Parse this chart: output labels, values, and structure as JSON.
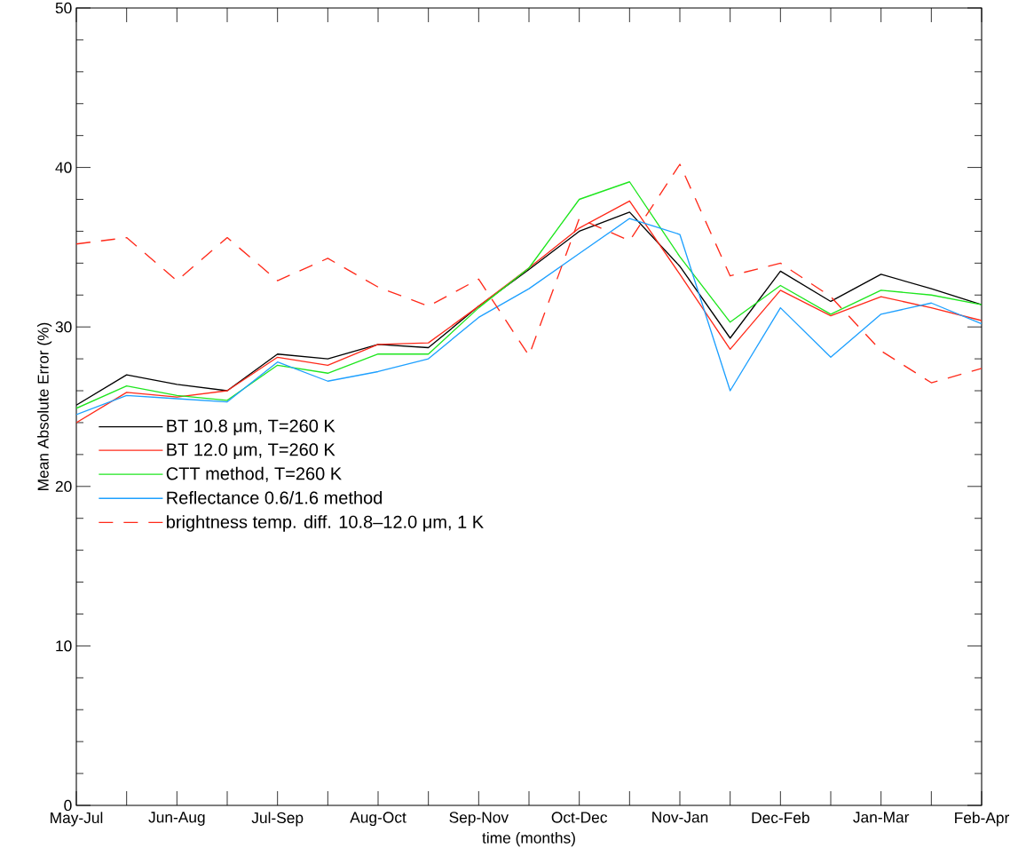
{
  "chart_data": {
    "type": "line",
    "xlabel": "time (months)",
    "ylabel": "Mean Absolute Error (%)",
    "categories": [
      "May-Jul",
      null,
      "Jun-Aug",
      null,
      "Jul-Sep",
      null,
      "Aug-Oct",
      null,
      "Sep-Nov",
      null,
      "Oct-Dec",
      null,
      "Nov-Jan",
      null,
      "Dec-Feb",
      null,
      "Jan-Mar",
      null,
      "Feb-Apr"
    ],
    "ylim": [
      0,
      50
    ],
    "yticks": [
      0,
      10,
      20,
      30,
      40,
      50
    ],
    "legend": "left",
    "series": [
      {
        "name": "BT 10.8 μm, T=260 K",
        "color": "#000000",
        "line_style": "solid",
        "values": [
          25.1,
          27.0,
          26.4,
          26.0,
          28.3,
          28.0,
          28.9,
          28.7,
          31.3,
          33.6,
          36.0,
          37.2,
          33.8,
          29.3,
          33.5,
          31.6,
          33.3,
          32.4,
          31.4
        ]
      },
      {
        "name": "BT 12.0 μm, T=260 K",
        "color": "#ff2a1a",
        "line_style": "solid",
        "values": [
          24.0,
          25.9,
          25.6,
          26.0,
          28.1,
          27.6,
          28.9,
          29.0,
          31.3,
          33.7,
          36.2,
          37.9,
          33.3,
          28.6,
          32.3,
          30.7,
          31.9,
          31.2,
          30.4
        ]
      },
      {
        "name": "CTT method, T=260 K",
        "color": "#1ee61e",
        "line_style": "solid",
        "values": [
          24.9,
          26.3,
          25.7,
          25.4,
          27.6,
          27.1,
          28.3,
          28.3,
          31.2,
          33.7,
          38.0,
          39.1,
          34.4,
          30.3,
          32.6,
          30.8,
          32.3,
          32.0,
          31.4
        ]
      },
      {
        "name": "Reflectance 0.6/1.6 method",
        "color": "#1ea0ff",
        "line_style": "solid",
        "values": [
          24.5,
          25.7,
          25.5,
          25.3,
          27.8,
          26.6,
          27.2,
          28.0,
          30.6,
          32.4,
          34.6,
          36.8,
          35.8,
          26.0,
          31.2,
          28.1,
          30.8,
          31.5,
          30.2
        ]
      },
      {
        "name": "brightness temp. diff. 10.8–12.0 μm, 1 K",
        "color": "#ff2a1a",
        "line_style": "dashed",
        "values": [
          35.2,
          35.6,
          32.9,
          35.6,
          32.9,
          34.3,
          32.5,
          31.3,
          33.0,
          28.2,
          36.8,
          35.4,
          40.2,
          33.2,
          34.0,
          31.9,
          28.5,
          26.5,
          27.4
        ]
      }
    ]
  }
}
